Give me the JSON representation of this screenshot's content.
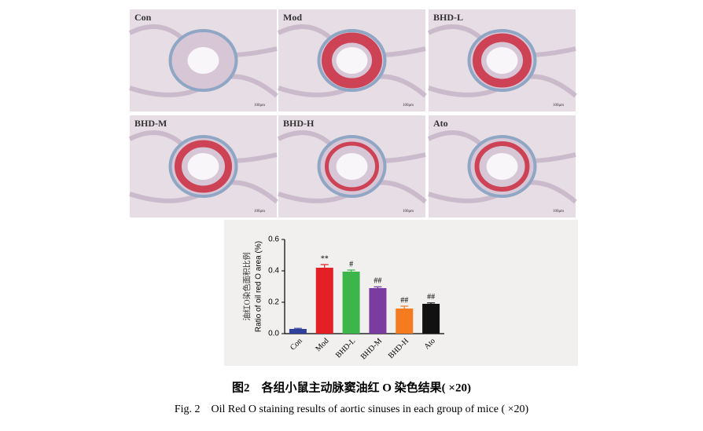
{
  "panels": [
    {
      "label": "Con"
    },
    {
      "label": "Mod"
    },
    {
      "label": "BHD-L"
    },
    {
      "label": "BHD-M"
    },
    {
      "label": "BHD-H"
    },
    {
      "label": "Ato"
    }
  ],
  "scale_bar": "100μm",
  "chart_data": {
    "type": "bar",
    "y_label_cn": "油红O染色面积比例",
    "y_label": "Ratio of oil red O area (%)",
    "categories": [
      "Con",
      "Mod",
      "BHD-L",
      "BHD-M",
      "BHD-H",
      "Ato"
    ],
    "values": [
      0.03,
      0.42,
      0.395,
      0.29,
      0.16,
      0.19
    ],
    "errors": [
      0.004,
      0.02,
      0.01,
      0.008,
      0.015,
      0.006
    ],
    "annotations": [
      null,
      "**",
      "#",
      "##",
      "##",
      "##"
    ],
    "colors": [
      "#2e3f9c",
      "#e42027",
      "#3cb54a",
      "#7a3c9e",
      "#f47b20",
      "#111111"
    ],
    "ylim": [
      0,
      0.6
    ],
    "yticks": [
      {
        "value": 0,
        "label": "0.0"
      },
      0.2,
      0.4,
      0.6
    ]
  },
  "caption": {
    "cn": "图2　各组小鼠主动脉窦油红 O 染色结果( ×20)",
    "en": "Fig. 2　Oil Red O staining results of aortic sinuses in each group of mice ( ×20)"
  }
}
